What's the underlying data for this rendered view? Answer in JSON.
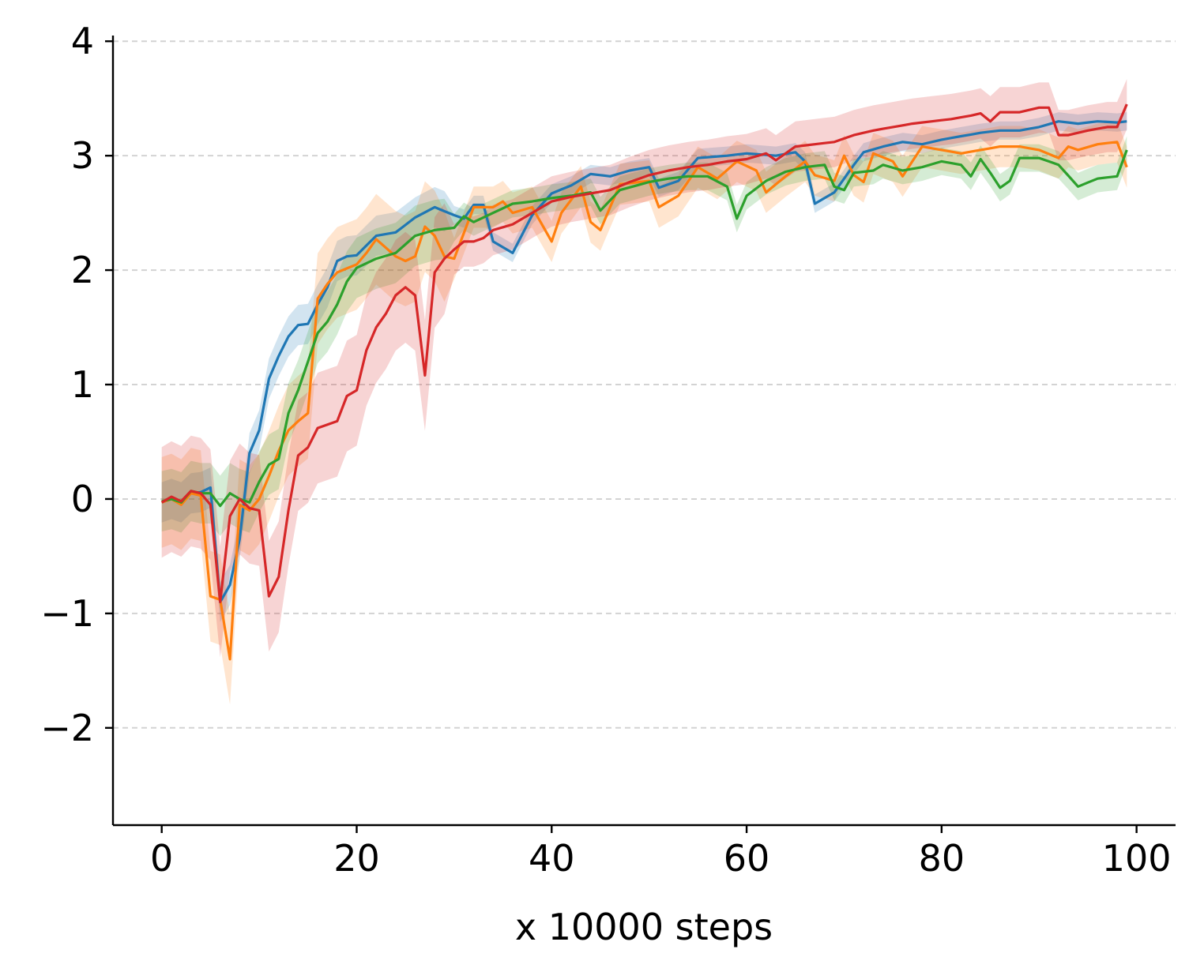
{
  "chart_data": {
    "type": "line",
    "title": "",
    "xlabel": "x 10000 steps",
    "ylabel": "",
    "xlim": [
      -5,
      104
    ],
    "ylim": [
      -2.85,
      4.05
    ],
    "xticks": [
      0,
      20,
      40,
      60,
      80,
      100
    ],
    "xtick_labels": [
      "0",
      "20",
      "40",
      "60",
      "80",
      "100"
    ],
    "yticks": [
      -2,
      -1,
      0,
      1,
      2,
      3,
      4
    ],
    "ytick_labels": [
      "−2",
      "−1",
      "0",
      "1",
      "2",
      "3",
      "4"
    ],
    "grid": "horizontal dashed",
    "legend": "none",
    "series": [
      {
        "color": "#1f77b4",
        "anchors": [
          [
            0,
            -0.03
          ],
          [
            1,
            0.0
          ],
          [
            2,
            -0.03
          ],
          [
            3,
            0.05
          ],
          [
            4,
            0.06
          ],
          [
            5,
            0.1
          ],
          [
            6,
            -0.9
          ],
          [
            7,
            -0.75
          ],
          [
            8,
            -0.35
          ],
          [
            9,
            0.4
          ],
          [
            10,
            0.6
          ],
          [
            11,
            1.05
          ],
          [
            12,
            1.25
          ],
          [
            13,
            1.42
          ],
          [
            14,
            1.52
          ],
          [
            15,
            1.53
          ],
          [
            16,
            1.7
          ],
          [
            17,
            1.85
          ],
          [
            18,
            2.08
          ],
          [
            19,
            2.12
          ],
          [
            20,
            2.13
          ],
          [
            22,
            2.3
          ],
          [
            24,
            2.33
          ],
          [
            26,
            2.46
          ],
          [
            28,
            2.55
          ],
          [
            30,
            2.48
          ],
          [
            31,
            2.45
          ],
          [
            32,
            2.57
          ],
          [
            33,
            2.57
          ],
          [
            34,
            2.25
          ],
          [
            36,
            2.15
          ],
          [
            38,
            2.48
          ],
          [
            40,
            2.67
          ],
          [
            42,
            2.74
          ],
          [
            44,
            2.84
          ],
          [
            46,
            2.82
          ],
          [
            48,
            2.87
          ],
          [
            50,
            2.9
          ],
          [
            51,
            2.72
          ],
          [
            53,
            2.78
          ],
          [
            55,
            2.98
          ],
          [
            58,
            3.0
          ],
          [
            60,
            3.02
          ],
          [
            63,
            3.0
          ],
          [
            65,
            3.03
          ],
          [
            66,
            2.95
          ],
          [
            67,
            2.58
          ],
          [
            69,
            2.68
          ],
          [
            71,
            2.92
          ],
          [
            72,
            3.03
          ],
          [
            74,
            3.08
          ],
          [
            76,
            3.12
          ],
          [
            78,
            3.1
          ],
          [
            80,
            3.14
          ],
          [
            82,
            3.17
          ],
          [
            84,
            3.2
          ],
          [
            86,
            3.22
          ],
          [
            88,
            3.22
          ],
          [
            90,
            3.25
          ],
          [
            92,
            3.3
          ],
          [
            94,
            3.28
          ],
          [
            96,
            3.3
          ],
          [
            98,
            3.29
          ],
          [
            99,
            3.3
          ]
        ],
        "band": 0.08
      },
      {
        "color": "#ff7f0e",
        "anchors": [
          [
            0,
            -0.03
          ],
          [
            1,
            0.0
          ],
          [
            2,
            -0.05
          ],
          [
            3,
            0.05
          ],
          [
            4,
            0.03
          ],
          [
            5,
            -0.85
          ],
          [
            6,
            -0.88
          ],
          [
            7,
            -1.4
          ],
          [
            8,
            -0.05
          ],
          [
            9,
            -0.1
          ],
          [
            10,
            0.0
          ],
          [
            11,
            0.2
          ],
          [
            12,
            0.42
          ],
          [
            13,
            0.6
          ],
          [
            14,
            0.68
          ],
          [
            15,
            0.75
          ],
          [
            16,
            1.75
          ],
          [
            17,
            1.88
          ],
          [
            18,
            1.98
          ],
          [
            20,
            2.05
          ],
          [
            21,
            2.15
          ],
          [
            22,
            2.27
          ],
          [
            24,
            2.12
          ],
          [
            25,
            2.08
          ],
          [
            26,
            2.12
          ],
          [
            27,
            2.38
          ],
          [
            28,
            2.3
          ],
          [
            29,
            2.12
          ],
          [
            30,
            2.1
          ],
          [
            32,
            2.55
          ],
          [
            34,
            2.55
          ],
          [
            35,
            2.6
          ],
          [
            36,
            2.5
          ],
          [
            38,
            2.55
          ],
          [
            40,
            2.25
          ],
          [
            41,
            2.5
          ],
          [
            43,
            2.73
          ],
          [
            44,
            2.42
          ],
          [
            45,
            2.35
          ],
          [
            47,
            2.75
          ],
          [
            50,
            2.78
          ],
          [
            51,
            2.55
          ],
          [
            53,
            2.65
          ],
          [
            55,
            2.9
          ],
          [
            57,
            2.8
          ],
          [
            59,
            2.95
          ],
          [
            61,
            2.87
          ],
          [
            62,
            2.68
          ],
          [
            64,
            2.82
          ],
          [
            66,
            2.95
          ],
          [
            67,
            2.83
          ],
          [
            69,
            2.78
          ],
          [
            70,
            3.0
          ],
          [
            71,
            2.83
          ],
          [
            72,
            2.77
          ],
          [
            73,
            3.02
          ],
          [
            75,
            2.95
          ],
          [
            76,
            2.82
          ],
          [
            78,
            3.08
          ],
          [
            80,
            3.05
          ],
          [
            82,
            3.02
          ],
          [
            84,
            3.05
          ],
          [
            86,
            3.08
          ],
          [
            88,
            3.08
          ],
          [
            90,
            3.05
          ],
          [
            92,
            2.98
          ],
          [
            93,
            3.08
          ],
          [
            94,
            3.05
          ],
          [
            96,
            3.1
          ],
          [
            98,
            3.12
          ],
          [
            99,
            2.9
          ]
        ],
        "band": 0.18
      },
      {
        "color": "#2ca02c",
        "anchors": [
          [
            0,
            -0.02
          ],
          [
            1,
            0.0
          ],
          [
            2,
            -0.03
          ],
          [
            3,
            0.07
          ],
          [
            4,
            0.05
          ],
          [
            5,
            0.05
          ],
          [
            6,
            -0.06
          ],
          [
            7,
            0.05
          ],
          [
            8,
            0.0
          ],
          [
            9,
            -0.03
          ],
          [
            10,
            0.15
          ],
          [
            11,
            0.3
          ],
          [
            12,
            0.35
          ],
          [
            13,
            0.75
          ],
          [
            14,
            0.95
          ],
          [
            15,
            1.2
          ],
          [
            16,
            1.45
          ],
          [
            17,
            1.55
          ],
          [
            18,
            1.7
          ],
          [
            19,
            1.9
          ],
          [
            20,
            2.02
          ],
          [
            22,
            2.1
          ],
          [
            24,
            2.15
          ],
          [
            26,
            2.3
          ],
          [
            28,
            2.35
          ],
          [
            30,
            2.37
          ],
          [
            31,
            2.47
          ],
          [
            32,
            2.42
          ],
          [
            34,
            2.5
          ],
          [
            36,
            2.58
          ],
          [
            38,
            2.6
          ],
          [
            40,
            2.63
          ],
          [
            42,
            2.65
          ],
          [
            44,
            2.68
          ],
          [
            45,
            2.52
          ],
          [
            47,
            2.7
          ],
          [
            50,
            2.77
          ],
          [
            52,
            2.8
          ],
          [
            54,
            2.82
          ],
          [
            56,
            2.82
          ],
          [
            58,
            2.73
          ],
          [
            59,
            2.45
          ],
          [
            60,
            2.65
          ],
          [
            62,
            2.78
          ],
          [
            64,
            2.86
          ],
          [
            66,
            2.9
          ],
          [
            68,
            2.92
          ],
          [
            69,
            2.73
          ],
          [
            70,
            2.7
          ],
          [
            71,
            2.85
          ],
          [
            73,
            2.87
          ],
          [
            74,
            2.92
          ],
          [
            76,
            2.87
          ],
          [
            78,
            2.9
          ],
          [
            80,
            2.95
          ],
          [
            82,
            2.92
          ],
          [
            83,
            2.82
          ],
          [
            84,
            2.97
          ],
          [
            85,
            2.85
          ],
          [
            86,
            2.72
          ],
          [
            87,
            2.78
          ],
          [
            88,
            2.98
          ],
          [
            90,
            2.98
          ],
          [
            92,
            2.92
          ],
          [
            94,
            2.73
          ],
          [
            96,
            2.8
          ],
          [
            98,
            2.82
          ],
          [
            99,
            3.05
          ]
        ],
        "band": 0.12
      },
      {
        "color": "#d62728",
        "anchors": [
          [
            0,
            -0.03
          ],
          [
            1,
            0.02
          ],
          [
            2,
            -0.02
          ],
          [
            3,
            0.07
          ],
          [
            4,
            0.05
          ],
          [
            5,
            -0.05
          ],
          [
            6,
            -0.9
          ],
          [
            7,
            -0.15
          ],
          [
            8,
            0.0
          ],
          [
            9,
            -0.08
          ],
          [
            10,
            -0.1
          ],
          [
            11,
            -0.85
          ],
          [
            12,
            -0.68
          ],
          [
            13,
            -0.1
          ],
          [
            14,
            0.38
          ],
          [
            15,
            0.45
          ],
          [
            16,
            0.62
          ],
          [
            17,
            0.65
          ],
          [
            18,
            0.68
          ],
          [
            19,
            0.9
          ],
          [
            20,
            0.95
          ],
          [
            21,
            1.3
          ],
          [
            22,
            1.5
          ],
          [
            23,
            1.62
          ],
          [
            24,
            1.78
          ],
          [
            25,
            1.85
          ],
          [
            26,
            1.78
          ],
          [
            27,
            1.08
          ],
          [
            28,
            1.98
          ],
          [
            29,
            2.1
          ],
          [
            30,
            2.18
          ],
          [
            31,
            2.25
          ],
          [
            32,
            2.25
          ],
          [
            33,
            2.28
          ],
          [
            34,
            2.35
          ],
          [
            36,
            2.4
          ],
          [
            38,
            2.5
          ],
          [
            40,
            2.6
          ],
          [
            42,
            2.64
          ],
          [
            44,
            2.67
          ],
          [
            46,
            2.7
          ],
          [
            48,
            2.77
          ],
          [
            50,
            2.83
          ],
          [
            52,
            2.87
          ],
          [
            54,
            2.9
          ],
          [
            56,
            2.92
          ],
          [
            58,
            2.95
          ],
          [
            60,
            2.97
          ],
          [
            62,
            3.02
          ],
          [
            63,
            2.96
          ],
          [
            65,
            3.08
          ],
          [
            67,
            3.1
          ],
          [
            69,
            3.12
          ],
          [
            71,
            3.18
          ],
          [
            73,
            3.22
          ],
          [
            75,
            3.25
          ],
          [
            77,
            3.28
          ],
          [
            79,
            3.3
          ],
          [
            81,
            3.32
          ],
          [
            83,
            3.35
          ],
          [
            84,
            3.37
          ],
          [
            85,
            3.3
          ],
          [
            86,
            3.38
          ],
          [
            88,
            3.38
          ],
          [
            90,
            3.42
          ],
          [
            91,
            3.42
          ],
          [
            92,
            3.18
          ],
          [
            93,
            3.18
          ],
          [
            95,
            3.22
          ],
          [
            97,
            3.25
          ],
          [
            98,
            3.25
          ],
          [
            99,
            3.45
          ]
        ],
        "band": 0.22
      }
    ]
  }
}
